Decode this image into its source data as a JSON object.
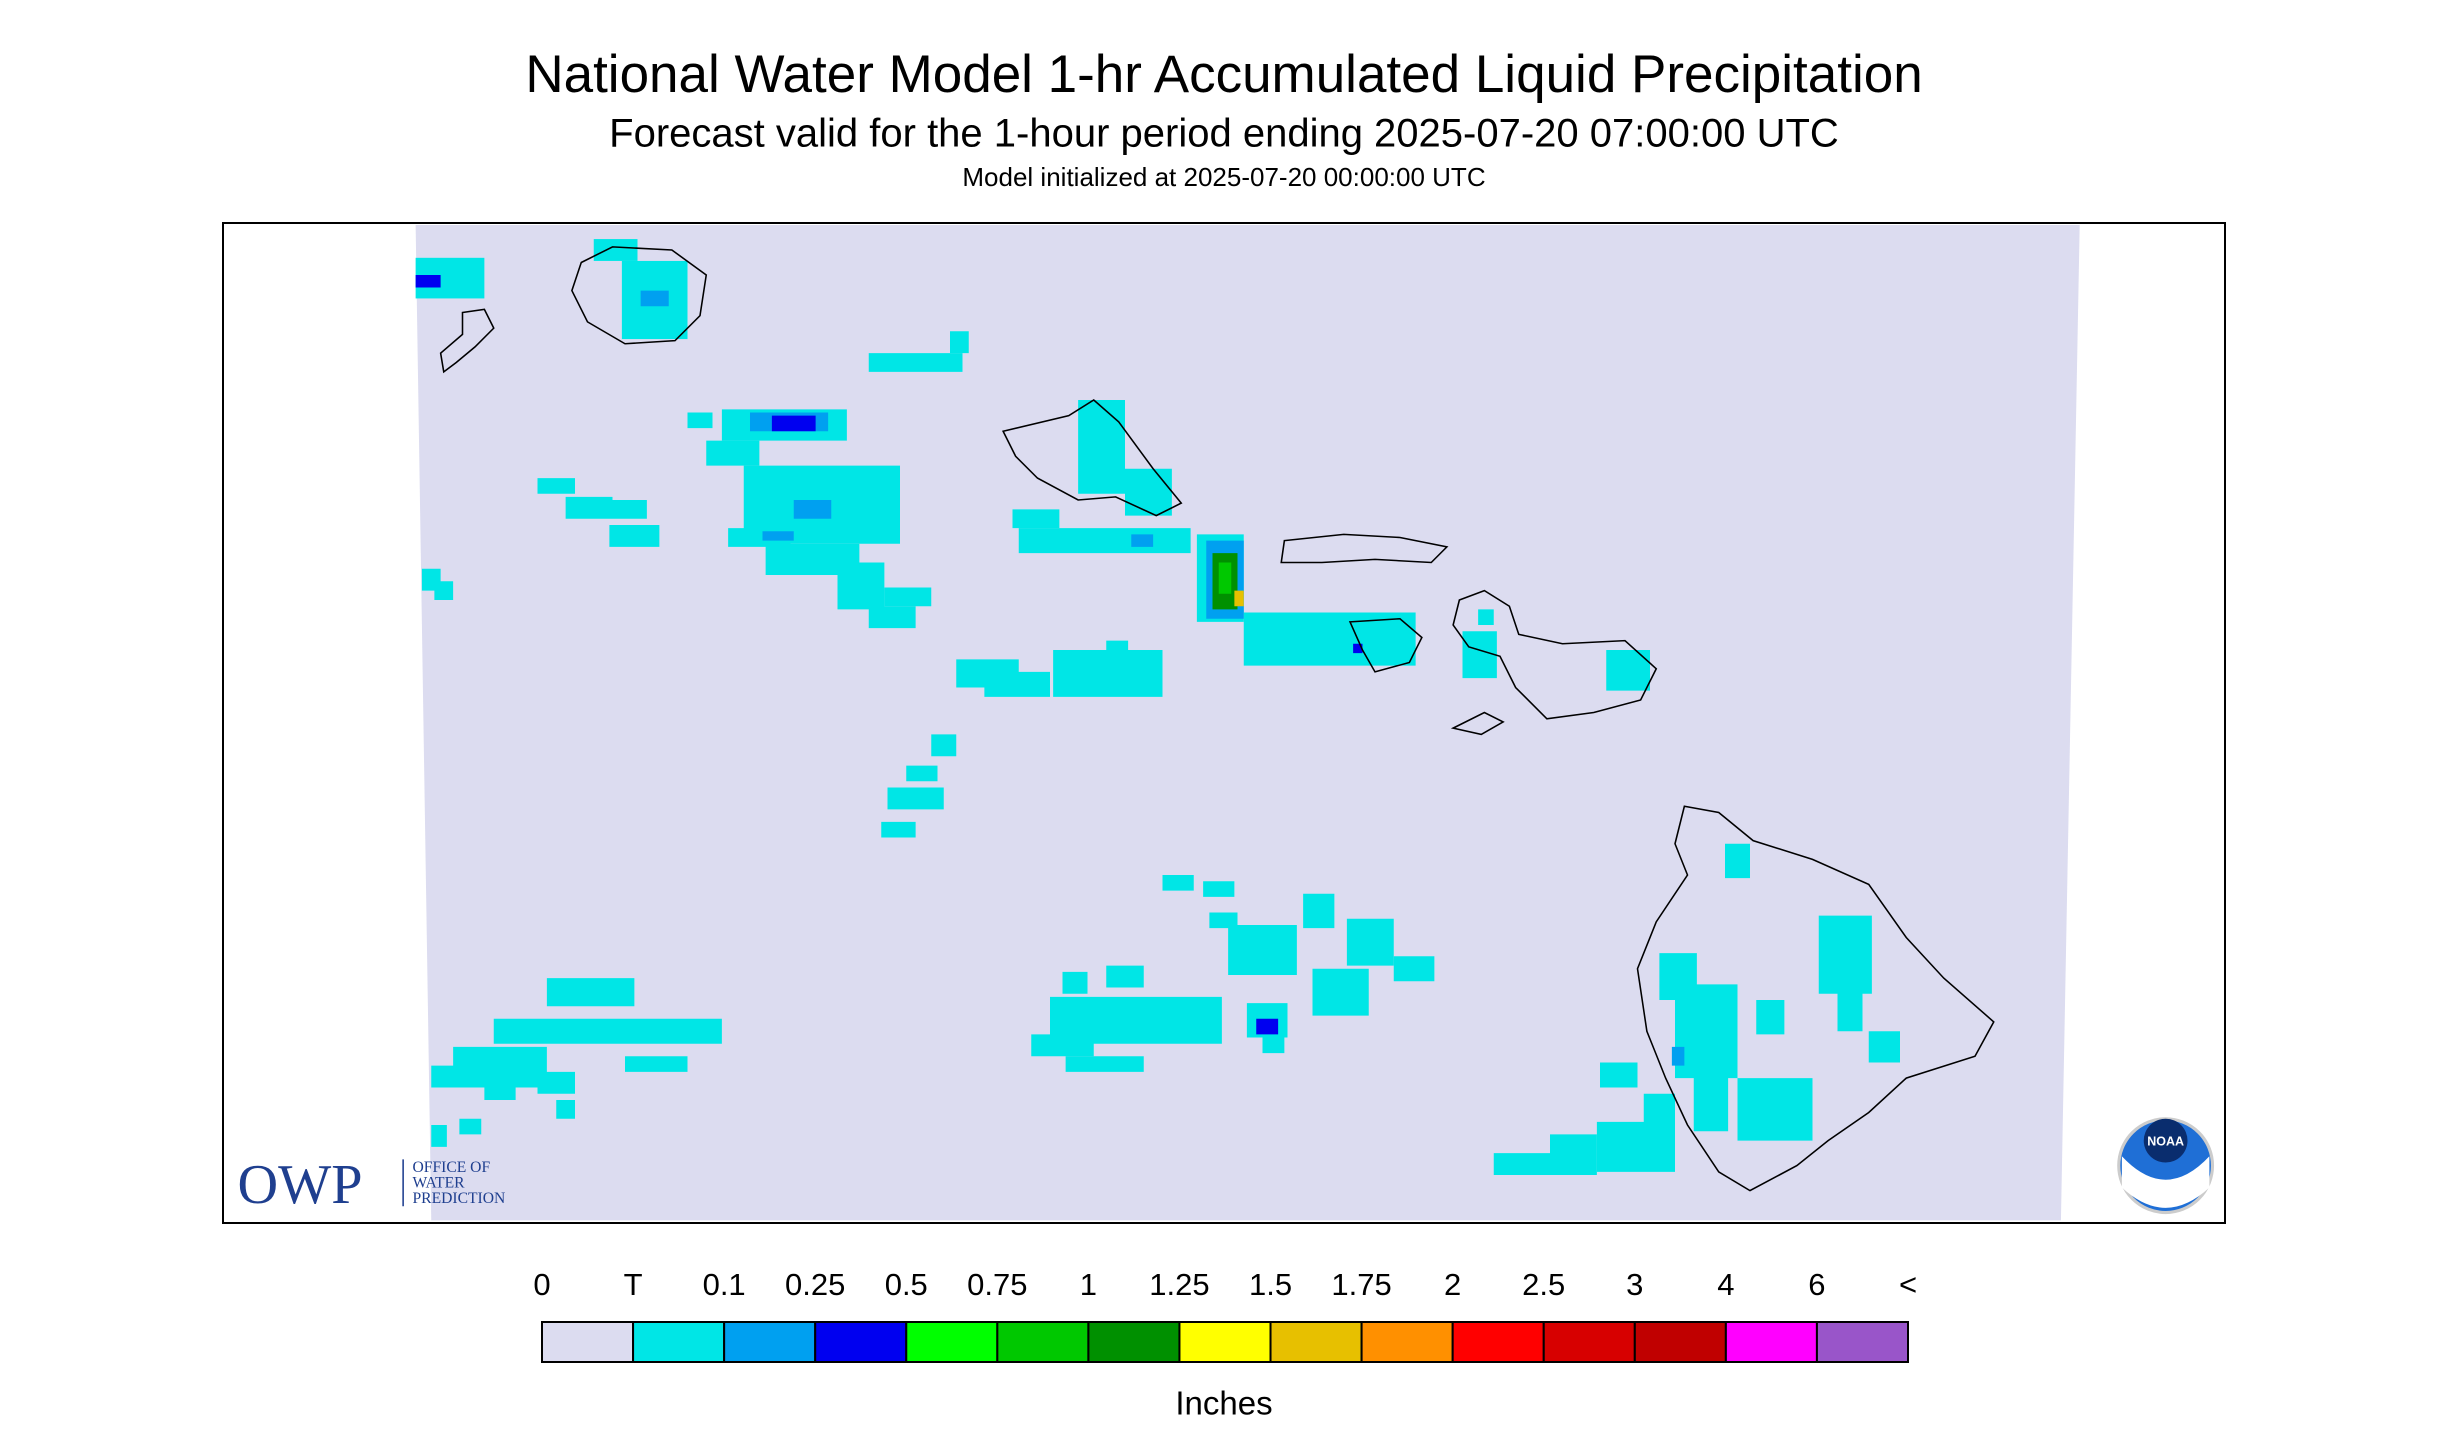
{
  "header": {
    "title": "National Water Model 1-hr Accumulated Liquid Precipitation",
    "subtitle": "Forecast valid for the 1-hour period ending 2025-07-20 07:00:00 UTC",
    "note": "Model initialized at 2025-07-20 00:00:00 UTC"
  },
  "legend": {
    "labels": [
      "0",
      "T",
      "0.1",
      "0.25",
      "0.5",
      "0.75",
      "1",
      "1.25",
      "1.5",
      "1.75",
      "2",
      "2.5",
      "3",
      "4",
      "6",
      "<"
    ],
    "colors": [
      "#dcdcf0",
      "#00e6e6",
      "#00a0f0",
      "#0000f0",
      "#00ff00",
      "#00c800",
      "#009000",
      "#ffff00",
      "#e7c000",
      "#ff9000",
      "#ff0000",
      "#d70000",
      "#c00000",
      "#ff00ff",
      "#9955c9"
    ],
    "unit": "Inches"
  },
  "logo": {
    "acronym": "OWP",
    "lines": [
      "OFFICE OF",
      "WATER",
      "PREDICTION"
    ],
    "noaa": "NOAA"
  }
}
